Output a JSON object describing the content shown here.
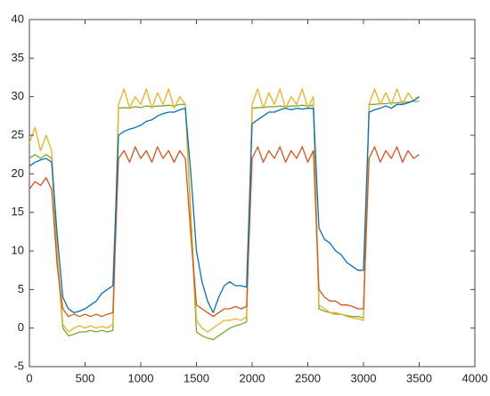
{
  "chart_data": {
    "type": "line",
    "x": [
      0,
      50,
      100,
      150,
      200,
      250,
      300,
      350,
      400,
      450,
      500,
      550,
      600,
      650,
      700,
      750,
      800,
      850,
      900,
      950,
      1000,
      1050,
      1100,
      1150,
      1200,
      1250,
      1300,
      1350,
      1400,
      1450,
      1500,
      1550,
      1600,
      1650,
      1700,
      1750,
      1800,
      1850,
      1900,
      1950,
      2000,
      2050,
      2100,
      2150,
      2200,
      2250,
      2300,
      2350,
      2400,
      2450,
      2500,
      2550,
      2600,
      2650,
      2700,
      2750,
      2800,
      2850,
      2900,
      2950,
      3000,
      3050,
      3100,
      3150,
      3200,
      3250,
      3300,
      3350,
      3400,
      3450,
      3500
    ],
    "series": [
      {
        "color": "#77ac30",
        "values": [
          22,
          22.5,
          22,
          22.5,
          22,
          9,
          0,
          -1,
          -0.8,
          -0.5,
          -0.5,
          -0.3,
          -0.5,
          -0.3,
          -0.5,
          -0.3,
          28.5,
          28.6,
          28.5,
          28.7,
          28.6,
          28.8,
          28.7,
          28.8,
          28.8,
          28.9,
          28.8,
          29,
          29,
          14,
          -0.5,
          -1,
          -1.3,
          -1.5,
          -1,
          -0.5,
          0,
          0.3,
          0.5,
          0.8,
          28.5,
          28.6,
          28.6,
          28.7,
          28.7,
          28.8,
          28.7,
          28.8,
          28.8,
          28.9,
          28.8,
          28.9,
          2.5,
          2.2,
          2,
          1.8,
          1.8,
          1.6,
          1.5,
          1.5,
          1.3,
          29,
          29,
          29.1,
          29.1,
          29.2,
          29.2,
          29.3,
          29.3,
          29.4,
          29.4
        ]
      },
      {
        "color": "#edb120",
        "values": [
          24,
          26,
          23,
          25,
          23,
          10,
          0.5,
          -0.5,
          0,
          0.3,
          0,
          0.3,
          0,
          0.2,
          0,
          0.5,
          29,
          31,
          28.5,
          30,
          29,
          31,
          28.5,
          30.5,
          29,
          31,
          28.5,
          30,
          29,
          15,
          1,
          0,
          -0.5,
          0,
          0.5,
          1,
          1,
          1.2,
          1,
          1.5,
          29,
          31,
          28.5,
          30.5,
          29,
          31,
          28.5,
          30,
          29,
          31,
          28.5,
          30,
          3,
          2.5,
          2,
          2,
          1.8,
          1.5,
          1.3,
          1.2,
          1,
          29,
          31,
          29,
          30.5,
          29,
          31,
          29,
          30.5,
          29.5,
          30
        ]
      },
      {
        "color": "#d95319",
        "values": [
          18,
          19,
          18.5,
          19.5,
          18,
          8,
          2.5,
          1.5,
          1.8,
          1.5,
          1.8,
          1.5,
          1.8,
          1.5,
          1.8,
          2,
          22,
          23,
          21.5,
          23.5,
          22,
          23,
          21.5,
          23.5,
          22,
          23,
          21.5,
          23,
          22,
          12,
          3,
          2.5,
          2,
          1.5,
          2,
          2.5,
          2.5,
          2.8,
          2.5,
          2.8,
          22,
          23.5,
          21.5,
          23,
          22,
          23.5,
          21.5,
          23,
          22,
          23.5,
          21.5,
          23,
          5,
          4,
          3.5,
          3.5,
          3,
          3,
          2.8,
          2.5,
          2.5,
          22,
          23.5,
          21.5,
          23,
          22,
          23.5,
          21.5,
          23,
          22,
          22.5
        ]
      },
      {
        "color": "#0072bd",
        "values": [
          21,
          21.5,
          21.8,
          22,
          21.5,
          12,
          4,
          2.5,
          2,
          2.2,
          2.5,
          3,
          3.5,
          4.5,
          5,
          5.5,
          25,
          25.5,
          25.8,
          26,
          26.3,
          26.8,
          27,
          27.5,
          27.8,
          28,
          28,
          28.3,
          28.5,
          20,
          10,
          6,
          3.5,
          2,
          4,
          5.5,
          6,
          5.5,
          5.5,
          5.3,
          26.5,
          27,
          27.5,
          28,
          28,
          28.3,
          28.5,
          28.3,
          28.5,
          28.4,
          28.5,
          28.5,
          13,
          11.5,
          11,
          10,
          9.5,
          8.5,
          8,
          7.5,
          7.5,
          28,
          28.3,
          28.5,
          28.8,
          28.5,
          29,
          29,
          29.2,
          29.5,
          30
        ]
      }
    ],
    "xlim": [
      0,
      4000
    ],
    "xticks": [
      0,
      500,
      1000,
      1500,
      2000,
      2500,
      3000,
      3500,
      4000
    ],
    "ylim": [
      -5,
      40
    ],
    "yticks": [
      -5,
      0,
      5,
      10,
      15,
      20,
      25,
      30,
      35,
      40
    ]
  }
}
